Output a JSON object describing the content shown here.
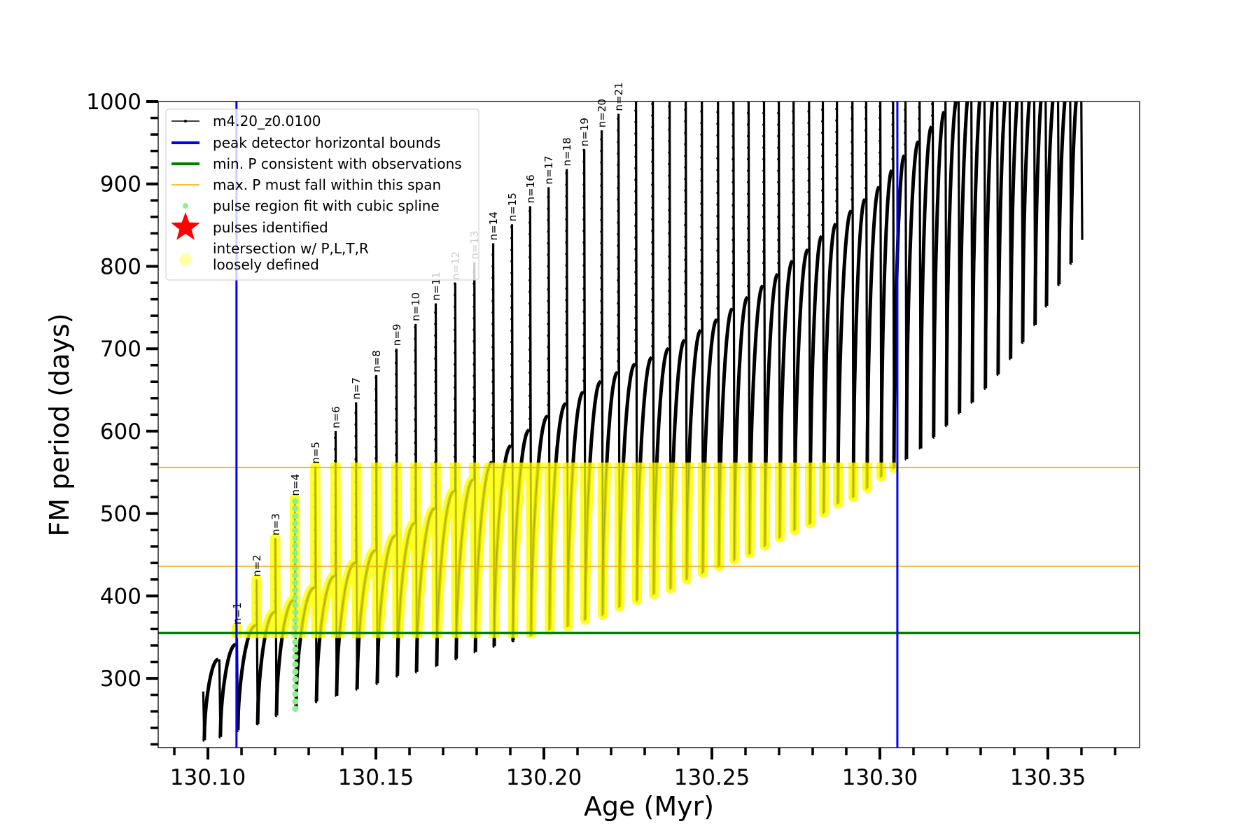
{
  "chart_data": {
    "type": "line",
    "title": "",
    "xlabel": "Age (Myr)",
    "ylabel": "FM period (days)",
    "xlim": [
      130.0852,
      130.3773
    ],
    "ylim": [
      216,
      1000
    ],
    "grid": false,
    "xticks": [
      {
        "value": 130.1,
        "label": "130.10"
      },
      {
        "value": 130.15,
        "label": "130.15"
      },
      {
        "value": 130.2,
        "label": "130.20"
      },
      {
        "value": 130.25,
        "label": "130.25"
      },
      {
        "value": 130.3,
        "label": "130.30"
      },
      {
        "value": 130.35,
        "label": "130.35"
      }
    ],
    "x_minor_step": 0.01,
    "yticks": [
      {
        "value": 300,
        "label": "300"
      },
      {
        "value": 400,
        "label": "400"
      },
      {
        "value": 500,
        "label": "500"
      },
      {
        "value": 600,
        "label": "600"
      },
      {
        "value": 700,
        "label": "700"
      },
      {
        "value": 800,
        "label": "800"
      },
      {
        "value": 900,
        "label": "900"
      },
      {
        "value": 1000,
        "label": "1000"
      }
    ],
    "y_minor_step": 20,
    "series": {
      "name": "m4.20_z0.0100",
      "color": "#000000",
      "pulse_fields": [
        "age",
        "peak_period",
        "dip_period",
        "period_before_pulse"
      ],
      "pulses": [
        [
          130.0985,
          284,
          225,
          null
        ],
        [
          130.1033,
          323,
          229,
          323
        ],
        [
          130.1085,
          362,
          237,
          341
        ],
        [
          130.1144,
          420,
          245,
          364
        ],
        [
          130.12,
          470,
          255,
          380
        ],
        [
          130.1258,
          518,
          263,
          395
        ],
        [
          130.1319,
          557,
          272,
          410
        ],
        [
          130.1379,
          600,
          279,
          424
        ],
        [
          130.144,
          635,
          287,
          440
        ],
        [
          130.15,
          668,
          294,
          455
        ],
        [
          130.156,
          700,
          303,
          473
        ],
        [
          130.1617,
          730,
          308,
          488
        ],
        [
          130.1677,
          755,
          315,
          506
        ],
        [
          130.1735,
          780,
          324,
          527
        ],
        [
          130.1792,
          805,
          332,
          541
        ],
        [
          130.1848,
          828,
          339,
          562
        ],
        [
          130.1904,
          851,
          346,
          582
        ],
        [
          130.1958,
          873,
          352,
          601
        ],
        [
          130.2013,
          896,
          359,
          618
        ],
        [
          130.2067,
          918,
          363,
          633
        ],
        [
          130.2119,
          942,
          371,
          647
        ],
        [
          130.2171,
          965,
          377,
          660
        ],
        [
          130.2221,
          985,
          387,
          671
        ],
        [
          130.2273,
          1030,
          395,
          681
        ],
        [
          130.2323,
          1030,
          402,
          689
        ],
        [
          130.2373,
          1030,
          409,
          700
        ],
        [
          130.2421,
          1030,
          420,
          710
        ],
        [
          130.2469,
          1030,
          428,
          722
        ],
        [
          130.2517,
          1030,
          436,
          735
        ],
        [
          130.2563,
          1030,
          444,
          748
        ],
        [
          130.2608,
          1030,
          452,
          762
        ],
        [
          130.2654,
          1030,
          461,
          776
        ],
        [
          130.2698,
          1030,
          471,
          790
        ],
        [
          130.2742,
          1030,
          480,
          806
        ],
        [
          130.2788,
          1030,
          488,
          820
        ],
        [
          130.2829,
          1030,
          501,
          836
        ],
        [
          130.2871,
          1030,
          512,
          851
        ],
        [
          130.2917,
          1030,
          520,
          867
        ],
        [
          130.2958,
          1030,
          531,
          881
        ],
        [
          130.3,
          1030,
          545,
          896
        ],
        [
          130.3038,
          1030,
          555,
          916
        ],
        [
          130.3075,
          1030,
          566,
          934
        ],
        [
          130.3117,
          1030,
          579,
          951
        ],
        [
          130.3156,
          1030,
          593,
          969
        ],
        [
          130.3194,
          1030,
          607,
          987
        ],
        [
          130.3233,
          1030,
          622,
          1005
        ],
        [
          130.3271,
          1030,
          635,
          1020
        ],
        [
          130.331,
          1030,
          652,
          1030
        ],
        [
          130.3348,
          1030,
          669,
          1030
        ],
        [
          130.3385,
          1030,
          688,
          1030
        ],
        [
          130.3421,
          1030,
          708,
          1030
        ],
        [
          130.3458,
          1030,
          729,
          1030
        ],
        [
          130.3492,
          1030,
          752,
          1030
        ],
        [
          130.3529,
          1030,
          778,
          1030
        ],
        [
          130.3565,
          1030,
          804,
          1030
        ],
        [
          130.3598,
          1030,
          832,
          1030
        ]
      ],
      "first_labeled_pulse_index": 2,
      "pulse_labels": [
        "n=1",
        "n=2",
        "n=3",
        "n=4",
        "n=5",
        "n=6",
        "n=7",
        "n=8",
        "n=9",
        "n=10",
        "n=11",
        "n=12",
        "n=13",
        "n=14",
        "n=15",
        "n=16",
        "n=17",
        "n=18",
        "n=19",
        "n=20",
        "n=21"
      ]
    },
    "peak_detector_bounds": {
      "ages": [
        130.1085,
        130.3052
      ],
      "color": "#0000ff"
    },
    "min_period_line": {
      "value": 355,
      "color": "#008000"
    },
    "max_period_span": {
      "values": [
        436,
        556
      ],
      "color": "#ffa500"
    },
    "spline_fit_points": {
      "age": 130.1258,
      "period_range": [
        263,
        518
      ],
      "color": "#90ee90"
    },
    "intersection_color": "#ffff00",
    "legend": {
      "placement": "upper-left",
      "entries": [
        {
          "label": "m4.20_z0.0100",
          "marker": "line-dot",
          "color": "#000000"
        },
        {
          "label": "peak detector horizontal bounds",
          "marker": "thick-line",
          "color": "#0000ff"
        },
        {
          "label": "min. P consistent with observations",
          "marker": "thick-line",
          "color": "#008000"
        },
        {
          "label": "max. P must fall within this span",
          "marker": "thin-line",
          "color": "#ffa500"
        },
        {
          "label": "pulse region fit with cubic spline",
          "marker": "small-dot",
          "color": "#90ee90"
        },
        {
          "label": "pulses identified",
          "marker": "star",
          "color": "#ff0000"
        },
        {
          "label": "intersection w/ P,L,T,R",
          "label2": "loosely defined",
          "marker": "big-dot",
          "color": "#ffffaa"
        }
      ]
    }
  }
}
